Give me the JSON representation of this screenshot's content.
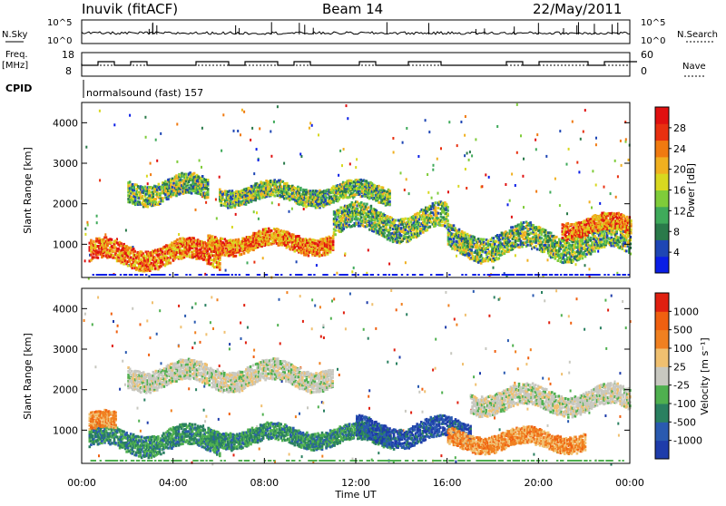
{
  "header": {
    "station": "Inuvik (fitACF)",
    "beam": "Beam 14",
    "date": "22/May/2011"
  },
  "status_panels": {
    "nsky_label": "N.Sky",
    "nsky_ticks": [
      "10^5",
      "10^0"
    ],
    "nsearch_label": "N.Search",
    "nsearch_ticks": [
      "10^5",
      "10^0"
    ],
    "freq_label_1": "Freq.",
    "freq_label_2": "[MHz]",
    "freq_ticks": [
      "18",
      "8"
    ],
    "nave_label": "Nave",
    "nave_ticks": [
      "60",
      "0"
    ],
    "cpid_label": "CPID",
    "cpid_text": "normalsound (fast) 157"
  },
  "chart_data": [
    {
      "type": "heatmap",
      "name": "Power",
      "ylabel": "Slant Range [km]",
      "yticks": [
        "1000",
        "2000",
        "3000",
        "4000"
      ],
      "ylim": [
        180,
        4500
      ],
      "xlim_hours": [
        0,
        24
      ],
      "colorbar": {
        "label": "Power [dB]",
        "ticks": [
          "4",
          "8",
          "12",
          "16",
          "20",
          "24",
          "28"
        ],
        "colors": [
          "#0a1ee6",
          "#1e46b4",
          "#2a7a4a",
          "#3faa5a",
          "#7fcc3a",
          "#d8d820",
          "#f0b020",
          "#f07a10",
          "#e83010",
          "#e01010"
        ]
      },
      "range_bands_km": [
        {
          "from_h": 0.3,
          "to_h": 6.0,
          "center": 800,
          "width": 500,
          "level": "high"
        },
        {
          "from_h": 2.0,
          "to_h": 5.5,
          "center": 2400,
          "width": 500,
          "level": "mid"
        },
        {
          "from_h": 5.5,
          "to_h": 11.0,
          "center": 1100,
          "width": 400,
          "level": "high"
        },
        {
          "from_h": 6.0,
          "to_h": 13.5,
          "center": 2300,
          "width": 400,
          "level": "mid"
        },
        {
          "from_h": 11.0,
          "to_h": 16.0,
          "center": 1600,
          "width": 600,
          "level": "mid"
        },
        {
          "from_h": 16.0,
          "to_h": 24.0,
          "center": 1100,
          "width": 600,
          "level": "mid"
        },
        {
          "from_h": 21.0,
          "to_h": 24.0,
          "center": 1500,
          "width": 400,
          "level": "high"
        }
      ]
    },
    {
      "type": "heatmap",
      "name": "Velocity",
      "ylabel": "Slant Range [km]",
      "yticks": [
        "1000",
        "2000",
        "3000",
        "4000"
      ],
      "ylim": [
        180,
        4500
      ],
      "xlim_hours": [
        0,
        24
      ],
      "colorbar": {
        "label": "Velocity [m s⁻¹]",
        "ticks": [
          "1000",
          "500",
          "100",
          "25",
          "-25",
          "-100",
          "-500",
          "-1000"
        ],
        "colors": [
          "#1e3caa",
          "#2a5ab0",
          "#2a8060",
          "#4fb04f",
          "#c8c8c0",
          "#f0c070",
          "#f08020",
          "#f06010",
          "#e02010"
        ]
      },
      "range_bands_km": [
        {
          "from_h": 0.3,
          "to_h": 6.0,
          "center": 800,
          "width": 500,
          "level": "green"
        },
        {
          "from_h": 0.3,
          "to_h": 1.5,
          "center": 1200,
          "width": 400,
          "level": "orange"
        },
        {
          "from_h": 2.0,
          "to_h": 11.0,
          "center": 2400,
          "width": 500,
          "level": "grey"
        },
        {
          "from_h": 5.5,
          "to_h": 13.5,
          "center": 900,
          "width": 400,
          "level": "green"
        },
        {
          "from_h": 12.0,
          "to_h": 17.0,
          "center": 1000,
          "width": 500,
          "level": "blue"
        },
        {
          "from_h": 16.0,
          "to_h": 22.0,
          "center": 800,
          "width": 400,
          "level": "orange"
        },
        {
          "from_h": 17.0,
          "to_h": 24.0,
          "center": 1800,
          "width": 500,
          "level": "grey"
        }
      ]
    }
  ],
  "time_axis": {
    "ticks": [
      "00:00",
      "04:00",
      "08:00",
      "12:00",
      "16:00",
      "20:00",
      "00:00"
    ],
    "label": "Time UT"
  }
}
